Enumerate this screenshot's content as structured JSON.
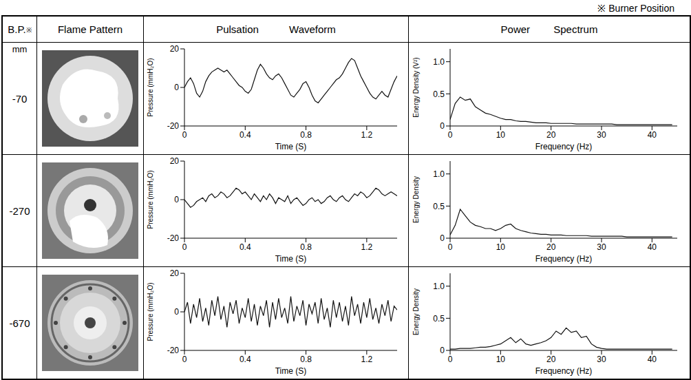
{
  "note": "※ Burner Position",
  "header": {
    "bp": "B.P.",
    "bp_mark": "※",
    "flame": "Flame Pattern",
    "waveform": "Pulsation Waveform",
    "spectrum": "Power Spectrum"
  },
  "unit": "mm",
  "rows": [
    {
      "bp": -70
    },
    {
      "bp": -270
    },
    {
      "bp": -670
    }
  ],
  "chart_data": [
    {
      "type": "line",
      "x_label": "Time (S)",
      "y_label": "Pressure (mmH₂O)",
      "xlim": [
        0,
        1.4
      ],
      "xticks": [
        0,
        0.4,
        0.8,
        1.2
      ],
      "ylim": [
        -20,
        20
      ],
      "yticks": [
        -20,
        0,
        20
      ],
      "color": "#111111",
      "x": [
        0,
        0.02,
        0.04,
        0.06,
        0.08,
        0.1,
        0.12,
        0.14,
        0.16,
        0.18,
        0.2,
        0.22,
        0.24,
        0.26,
        0.28,
        0.3,
        0.32,
        0.34,
        0.36,
        0.38,
        0.4,
        0.42,
        0.44,
        0.46,
        0.48,
        0.5,
        0.52,
        0.54,
        0.56,
        0.58,
        0.6,
        0.62,
        0.64,
        0.66,
        0.68,
        0.7,
        0.72,
        0.74,
        0.76,
        0.78,
        0.8,
        0.82,
        0.84,
        0.86,
        0.88,
        0.9,
        0.92,
        0.94,
        0.96,
        0.98,
        1,
        1.02,
        1.04,
        1.06,
        1.08,
        1.1,
        1.12,
        1.14,
        1.16,
        1.18,
        1.2,
        1.22,
        1.24,
        1.26,
        1.28,
        1.3,
        1.32,
        1.34,
        1.36,
        1.38,
        1.4
      ],
      "values": [
        0,
        3,
        5,
        2,
        -3,
        -5,
        -2,
        3,
        6,
        8,
        9,
        10,
        9,
        8,
        9,
        7,
        5,
        3,
        1,
        0,
        -2,
        -3,
        -1,
        4,
        9,
        12,
        10,
        7,
        5,
        4,
        6,
        7,
        5,
        2,
        -1,
        -4,
        -5,
        -3,
        -1,
        2,
        3,
        0,
        -4,
        -7,
        -8,
        -6,
        -4,
        -2,
        0,
        2,
        4,
        5,
        7,
        10,
        13,
        15,
        14,
        10,
        6,
        3,
        0,
        -3,
        -5,
        -6,
        -4,
        -2,
        -4,
        -5,
        -1,
        3,
        6
      ]
    },
    {
      "type": "line",
      "x_label": "Frequency (Hz)",
      "y_label": "Energy Density (V²)",
      "xlim": [
        0,
        45
      ],
      "xticks": [
        0,
        10,
        20,
        30,
        40
      ],
      "ylim": [
        0,
        1.2
      ],
      "yticks": [
        0,
        0.5,
        {
          "value": 1,
          "label": "1.0"
        }
      ],
      "color": "#111111",
      "x": [
        0,
        1,
        2,
        3,
        4,
        5,
        6,
        7,
        8,
        9,
        10,
        11,
        12,
        13,
        14,
        15,
        16,
        17,
        18,
        19,
        20,
        21,
        22,
        23,
        24,
        25,
        26,
        27,
        28,
        29,
        30,
        31,
        32,
        33,
        34,
        35,
        36,
        37,
        38,
        39,
        40,
        41,
        42,
        43,
        44
      ],
      "values": [
        0.1,
        0.35,
        0.45,
        0.4,
        0.42,
        0.3,
        0.25,
        0.2,
        0.18,
        0.15,
        0.12,
        0.1,
        0.1,
        0.08,
        0.07,
        0.07,
        0.06,
        0.05,
        0.05,
        0.05,
        0.04,
        0.04,
        0.04,
        0.04,
        0.04,
        0.03,
        0.03,
        0.03,
        0.03,
        0.03,
        0.03,
        0.03,
        0.03,
        0.02,
        0.02,
        0.02,
        0.02,
        0.02,
        0.02,
        0.02,
        0.02,
        0.02,
        0.02,
        0.02,
        0.02
      ]
    },
    {
      "type": "line",
      "x_label": "Time (S)",
      "y_label": "Pressure (mmH₂O)",
      "xlim": [
        0,
        1.4
      ],
      "xticks": [
        0,
        0.4,
        0.8,
        1.2
      ],
      "ylim": [
        -20,
        20
      ],
      "yticks": [
        -20,
        0,
        20
      ],
      "color": "#111111",
      "x": [
        0,
        0.02,
        0.04,
        0.06,
        0.08,
        0.1,
        0.12,
        0.14,
        0.16,
        0.18,
        0.2,
        0.22,
        0.24,
        0.26,
        0.28,
        0.3,
        0.32,
        0.34,
        0.36,
        0.38,
        0.4,
        0.42,
        0.44,
        0.46,
        0.48,
        0.5,
        0.52,
        0.54,
        0.56,
        0.58,
        0.6,
        0.62,
        0.64,
        0.66,
        0.68,
        0.7,
        0.72,
        0.74,
        0.76,
        0.78,
        0.8,
        0.82,
        0.84,
        0.86,
        0.88,
        0.9,
        0.92,
        0.94,
        0.96,
        0.98,
        1,
        1.02,
        1.04,
        1.06,
        1.08,
        1.1,
        1.12,
        1.14,
        1.16,
        1.18,
        1.2,
        1.22,
        1.24,
        1.26,
        1.28,
        1.3,
        1.32,
        1.34,
        1.36,
        1.38,
        1.4
      ],
      "values": [
        0,
        -2,
        -4,
        -3,
        -1,
        0,
        1,
        -1,
        2,
        3,
        1,
        2,
        4,
        3,
        1,
        2,
        4,
        6,
        5,
        3,
        4,
        2,
        0,
        3,
        1,
        -1,
        2,
        0,
        3,
        1,
        -2,
        1,
        0,
        -1,
        2,
        -2,
        0,
        1,
        -1,
        -3,
        -2,
        0,
        1,
        -1,
        0,
        -2,
        -1,
        1,
        2,
        0,
        -1,
        1,
        2,
        0,
        -1,
        1,
        3,
        2,
        4,
        3,
        1,
        2,
        4,
        6,
        5,
        3,
        2,
        3,
        4,
        3,
        2
      ]
    },
    {
      "type": "line",
      "x_label": "Frequency (Hz)",
      "y_label": "Energy Density",
      "xlim": [
        0,
        45
      ],
      "xticks": [
        0,
        10,
        20,
        30,
        40
      ],
      "ylim": [
        0,
        1.2
      ],
      "yticks": [
        0,
        0.5,
        {
          "value": 1,
          "label": "1.0"
        }
      ],
      "color": "#111111",
      "x": [
        0,
        1,
        2,
        3,
        4,
        5,
        6,
        7,
        8,
        9,
        10,
        11,
        12,
        13,
        14,
        15,
        16,
        17,
        18,
        19,
        20,
        21,
        22,
        23,
        24,
        25,
        26,
        27,
        28,
        29,
        30,
        31,
        32,
        33,
        34,
        35,
        36,
        37,
        38,
        39,
        40,
        41,
        42,
        43,
        44
      ],
      "values": [
        0.05,
        0.2,
        0.45,
        0.35,
        0.25,
        0.2,
        0.18,
        0.15,
        0.15,
        0.12,
        0.15,
        0.2,
        0.22,
        0.15,
        0.12,
        0.1,
        0.08,
        0.07,
        0.06,
        0.06,
        0.05,
        0.05,
        0.05,
        0.04,
        0.04,
        0.04,
        0.04,
        0.04,
        0.03,
        0.03,
        0.03,
        0.03,
        0.03,
        0.03,
        0.03,
        0.02,
        0.02,
        0.02,
        0.02,
        0.02,
        0.02,
        0.02,
        0.02,
        0.02,
        0.02
      ]
    },
    {
      "type": "line",
      "x_label": "Time (S)",
      "y_label": "Pressure (mmH₂O)",
      "xlim": [
        0,
        1.4
      ],
      "xticks": [
        0,
        0.4,
        0.8,
        1.2
      ],
      "ylim": [
        -20,
        20
      ],
      "yticks": [
        -20,
        0,
        20
      ],
      "color": "#111111",
      "x": [
        0,
        0.02,
        0.04,
        0.06,
        0.08,
        0.1,
        0.12,
        0.14,
        0.16,
        0.18,
        0.2,
        0.22,
        0.24,
        0.26,
        0.28,
        0.3,
        0.32,
        0.34,
        0.36,
        0.38,
        0.4,
        0.42,
        0.44,
        0.46,
        0.48,
        0.5,
        0.52,
        0.54,
        0.56,
        0.58,
        0.6,
        0.62,
        0.64,
        0.66,
        0.68,
        0.7,
        0.72,
        0.74,
        0.76,
        0.78,
        0.8,
        0.82,
        0.84,
        0.86,
        0.88,
        0.9,
        0.92,
        0.94,
        0.96,
        0.98,
        1,
        1.02,
        1.04,
        1.06,
        1.08,
        1.1,
        1.12,
        1.14,
        1.16,
        1.18,
        1.2,
        1.22,
        1.24,
        1.26,
        1.28,
        1.3,
        1.32,
        1.34,
        1.36,
        1.38,
        1.4
      ],
      "values": [
        0,
        5,
        -6,
        4,
        -3,
        7,
        -5,
        2,
        -7,
        6,
        -2,
        8,
        -4,
        3,
        -8,
        5,
        -1,
        6,
        -6,
        2,
        -3,
        7,
        -5,
        4,
        -7,
        3,
        -2,
        6,
        -8,
        5,
        -4,
        7,
        -3,
        2,
        -6,
        8,
        -5,
        3,
        -2,
        6,
        -7,
        4,
        -1,
        5,
        -6,
        7,
        -4,
        2,
        -8,
        6,
        -3,
        5,
        -5,
        3,
        -7,
        8,
        -2,
        4,
        -6,
        5,
        -3,
        7,
        -4,
        2,
        -6,
        4,
        -2,
        6,
        -5,
        3,
        1
      ]
    },
    {
      "type": "line",
      "x_label": "Frequency (Hz)",
      "y_label": "Energy Density",
      "xlim": [
        0,
        45
      ],
      "xticks": [
        0,
        10,
        20,
        30,
        40
      ],
      "ylim": [
        0,
        1.2
      ],
      "yticks": [
        0,
        0.5,
        {
          "value": 1,
          "label": "1.0"
        }
      ],
      "color": "#111111",
      "x": [
        0,
        1,
        2,
        3,
        4,
        5,
        6,
        7,
        8,
        9,
        10,
        11,
        12,
        13,
        14,
        15,
        16,
        17,
        18,
        19,
        20,
        21,
        22,
        23,
        24,
        25,
        26,
        27,
        28,
        29,
        30,
        31,
        32,
        33,
        34,
        35,
        36,
        37,
        38,
        39,
        40,
        41,
        42,
        43,
        44
      ],
      "values": [
        0.02,
        0.02,
        0.03,
        0.03,
        0.03,
        0.04,
        0.05,
        0.05,
        0.06,
        0.08,
        0.1,
        0.15,
        0.2,
        0.12,
        0.18,
        0.1,
        0.08,
        0.1,
        0.12,
        0.15,
        0.2,
        0.3,
        0.25,
        0.35,
        0.28,
        0.3,
        0.2,
        0.22,
        0.1,
        0.05,
        0.03,
        0.02,
        0.02,
        0.02,
        0.02,
        0.02,
        0.02,
        0.02,
        0.02,
        0.02,
        0.02,
        0.02,
        0.02,
        0.02,
        0.02
      ]
    }
  ]
}
